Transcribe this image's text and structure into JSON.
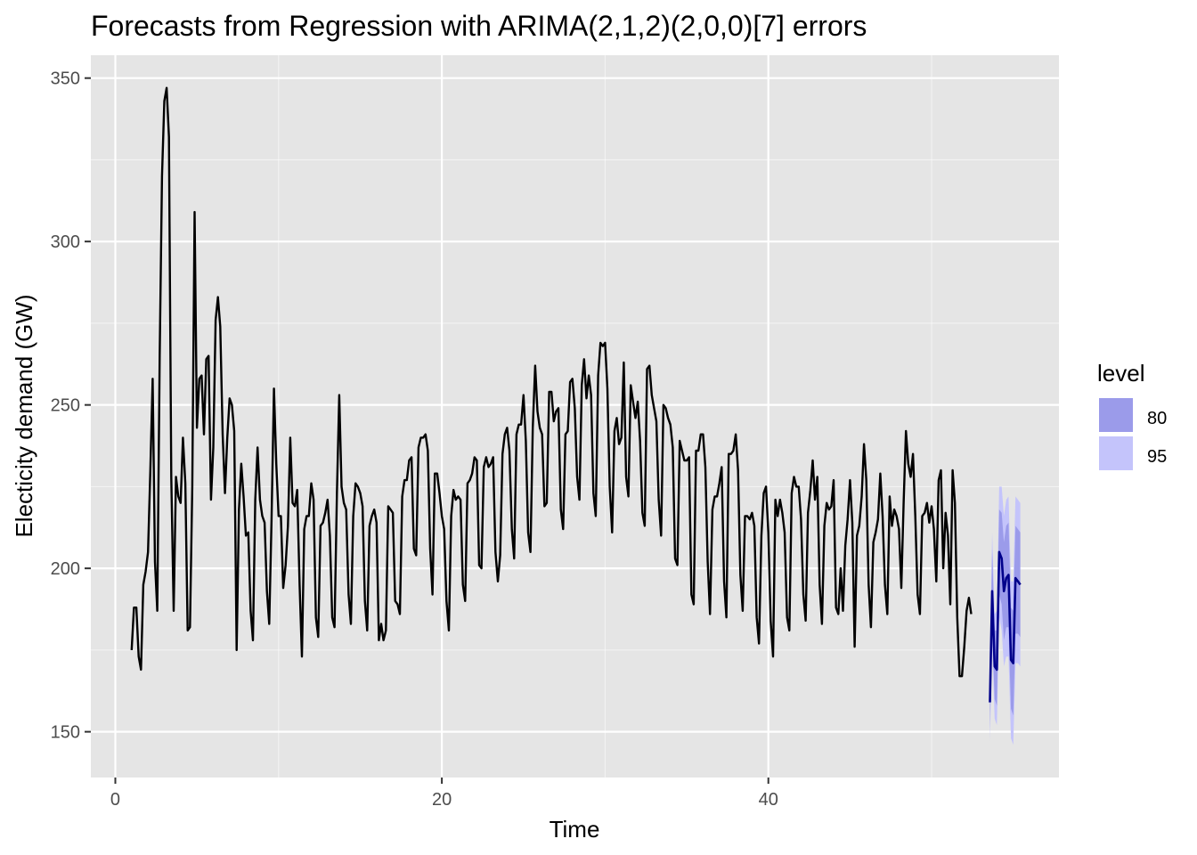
{
  "chart_data": {
    "type": "line",
    "title": "Forecasts from Regression with ARIMA(2,1,2)(2,0,0)[7] errors",
    "xlabel": "Time",
    "ylabel": "Electicity demand (GW)",
    "xlim": [
      -1.5,
      57.8
    ],
    "ylim": [
      136,
      357
    ],
    "x_ticks": [
      0,
      20,
      40
    ],
    "x_tick_labels": [
      "0",
      "20",
      "40"
    ],
    "y_ticks": [
      150,
      200,
      250,
      300,
      350
    ],
    "y_tick_labels": [
      "150",
      "200",
      "250",
      "300",
      "350"
    ],
    "grid": true,
    "legend": {
      "title": "level",
      "placement": "right",
      "entries": [
        {
          "label": "80",
          "color": "#9b9bea"
        },
        {
          "label": "95",
          "color": "#c4c4fb"
        }
      ]
    },
    "colors": {
      "panel": "#e5e5e5",
      "grid_major": "#ffffff",
      "history_line": "#000000",
      "forecast_line": "#00008b",
      "band80": "#9b9bea",
      "band95": "#c4c4fb"
    },
    "series": [
      {
        "role": "history",
        "x_start": 1.0,
        "x_step": 0.142857,
        "values": [
          175,
          188,
          188,
          173,
          169,
          195,
          199,
          205,
          230,
          258,
          202,
          187,
          265,
          320,
          343,
          347,
          332,
          228,
          187,
          228,
          222,
          220,
          240,
          226,
          181,
          182,
          225,
          309,
          243,
          258,
          259,
          241,
          264,
          265,
          221,
          237,
          276,
          283,
          274,
          241,
          223,
          240,
          252,
          250,
          242,
          175,
          218,
          232,
          222,
          210,
          211,
          187,
          178,
          221,
          237,
          221,
          216,
          214,
          193,
          183,
          215,
          255,
          232,
          216,
          216,
          194,
          201,
          213,
          240,
          220,
          219,
          224,
          195,
          173,
          212,
          216,
          216,
          226,
          221,
          185,
          179,
          213,
          214,
          217,
          221,
          210,
          185,
          182,
          223,
          253,
          225,
          220,
          218,
          192,
          183,
          216,
          226,
          225,
          223,
          219,
          190,
          181,
          213,
          216,
          218,
          214,
          178,
          183,
          178,
          181,
          219,
          218,
          217,
          190,
          189,
          186,
          222,
          227,
          227,
          233,
          234,
          206,
          204,
          237,
          240,
          240,
          241,
          236,
          206,
          192,
          229,
          229,
          223,
          216,
          212,
          190,
          181,
          216,
          224,
          221,
          222,
          221,
          195,
          190,
          226,
          227,
          229,
          234,
          233,
          201,
          200,
          231,
          234,
          231,
          232,
          234,
          205,
          196,
          204,
          235,
          241,
          243,
          236,
          212,
          203,
          241,
          244,
          244,
          253,
          239,
          211,
          205,
          243,
          262,
          248,
          243,
          241,
          219,
          220,
          254,
          254,
          245,
          248,
          249,
          218,
          212,
          241,
          242,
          257,
          258,
          249,
          228,
          221,
          256,
          264,
          252,
          259,
          253,
          223,
          216,
          259,
          269,
          268,
          269,
          255,
          225,
          211,
          242,
          246,
          238,
          240,
          263,
          228,
          222,
          256,
          251,
          246,
          251,
          239,
          217,
          213,
          261,
          262,
          253,
          249,
          245,
          221,
          210,
          250,
          249,
          246,
          244,
          237,
          203,
          201,
          239,
          236,
          233,
          233,
          234,
          192,
          189,
          236,
          236,
          241,
          241,
          231,
          202,
          186,
          218,
          222,
          222,
          226,
          231,
          196,
          185,
          235,
          235,
          236,
          241,
          230,
          198,
          187,
          216,
          216,
          215,
          217,
          213,
          185,
          177,
          210,
          223,
          225,
          211,
          184,
          173,
          221,
          216,
          221,
          217,
          211,
          185,
          181,
          223,
          228,
          225,
          225,
          215,
          192,
          184,
          217,
          224,
          233,
          221,
          228,
          195,
          183,
          213,
          220,
          218,
          219,
          227,
          188,
          186,
          200,
          187,
          207,
          215,
          227,
          214,
          176,
          210,
          213,
          222,
          238,
          227,
          195,
          182,
          208,
          211,
          215,
          229,
          216,
          195,
          186,
          222,
          213,
          218,
          216,
          212,
          194,
          220,
          242,
          232,
          228,
          235,
          216,
          192,
          186,
          216,
          217,
          220,
          214,
          219,
          212,
          196,
          227,
          230,
          200,
          217,
          210,
          189,
          230,
          220,
          185,
          167,
          167,
          176,
          187,
          191,
          186
        ]
      },
      {
        "role": "forecast",
        "name": "point forecast",
        "x": [
          53.57,
          53.71,
          53.86,
          54.0,
          54.14,
          54.29,
          54.43,
          54.57,
          54.71,
          54.86,
          55.0,
          55.14,
          55.29,
          55.43
        ],
        "values": [
          159,
          193,
          170,
          169,
          205,
          203,
          193,
          197,
          198,
          172,
          171,
          197,
          196,
          195
        ],
        "lo80": [
          151,
          182,
          160,
          158,
          192,
          189,
          178,
          182,
          182,
          157,
          155,
          180,
          180,
          179
        ],
        "hi80": [
          167,
          205,
          181,
          181,
          218,
          217,
          208,
          213,
          214,
          188,
          187,
          213,
          212,
          211
        ],
        "lo95": [
          147,
          176,
          154,
          152,
          185,
          181,
          170,
          173,
          173,
          148,
          146,
          171,
          171,
          170
        ],
        "hi95": [
          171,
          211,
          186,
          187,
          225,
          225,
          216,
          221,
          222,
          196,
          196,
          222,
          221,
          220
        ]
      }
    ]
  }
}
